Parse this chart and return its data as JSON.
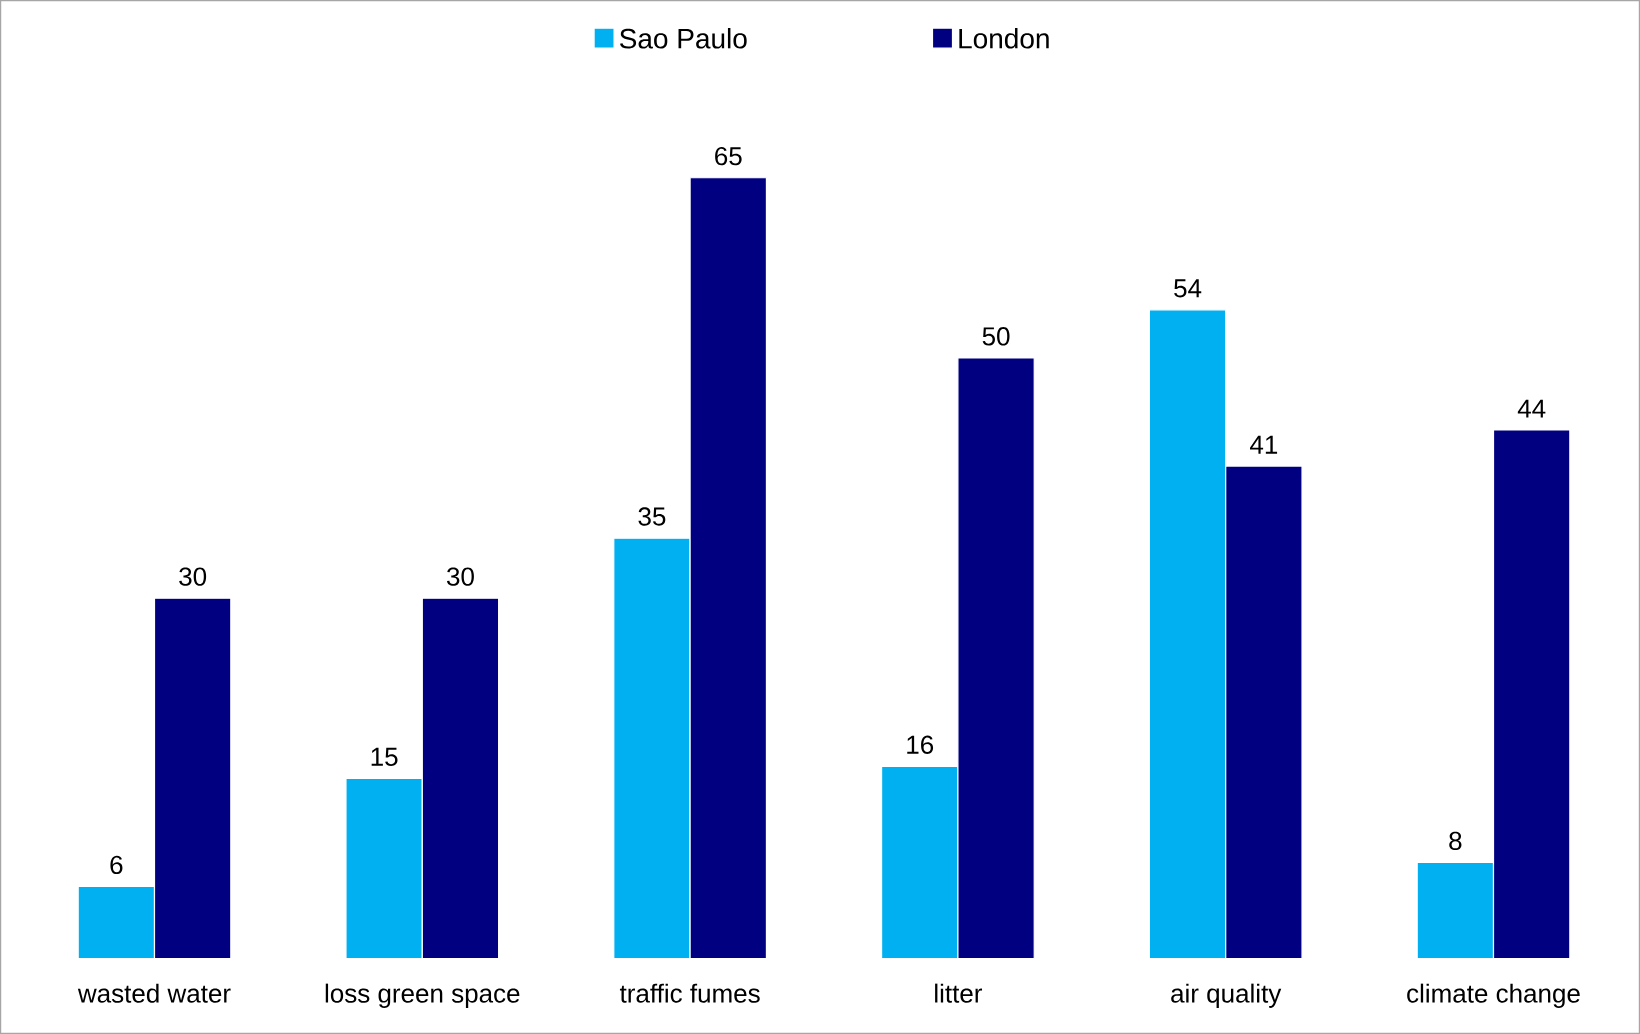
{
  "chart_data": {
    "type": "bar",
    "categories": [
      "wasted water",
      "loss green space",
      "traffic fumes",
      "litter",
      "air quality",
      "climate change"
    ],
    "series": [
      {
        "name": "Sao Paulo",
        "color": "#00b0f0",
        "values": [
          6,
          15,
          35,
          16,
          54,
          8
        ]
      },
      {
        "name": "London",
        "color": "#000080",
        "values": [
          30,
          30,
          65,
          50,
          41,
          44
        ]
      }
    ],
    "data_labels": true,
    "legend": "top"
  }
}
